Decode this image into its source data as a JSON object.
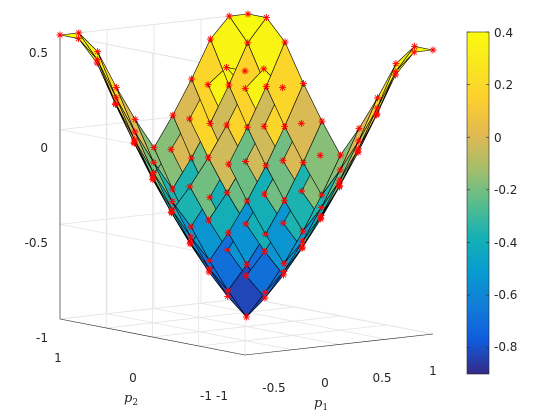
{
  "chart_data": {
    "type": "surface",
    "title": "",
    "function": "p1^2 + p2^2 + 0.4 - 1.3 * sqrt(...)",
    "x": {
      "label_base": "p",
      "label_sub": "1",
      "ticks": [
        "-1",
        "-0.5",
        "0",
        "0.5",
        "1"
      ],
      "range": [
        -1,
        1
      ]
    },
    "y": {
      "label_base": "p",
      "label_sub": "2",
      "ticks": [
        "-1",
        "0",
        "1"
      ],
      "range": [
        -1,
        1
      ]
    },
    "z": {
      "ticks": [
        "-1",
        "-0.5",
        "0",
        "0.5"
      ],
      "range": [
        -1,
        0.5
      ]
    },
    "colorbar": {
      "ticks": [
        "-0.8",
        "-0.6",
        "-0.4",
        "-0.2",
        "0",
        "0.2",
        "0.4"
      ],
      "range": [
        -0.9,
        0.4
      ]
    },
    "colormap": "parula",
    "grid": true,
    "marker": {
      "symbol": "asterisk",
      "color": "#ff0000"
    },
    "mesh_color": "#000000",
    "samples": 11
  }
}
